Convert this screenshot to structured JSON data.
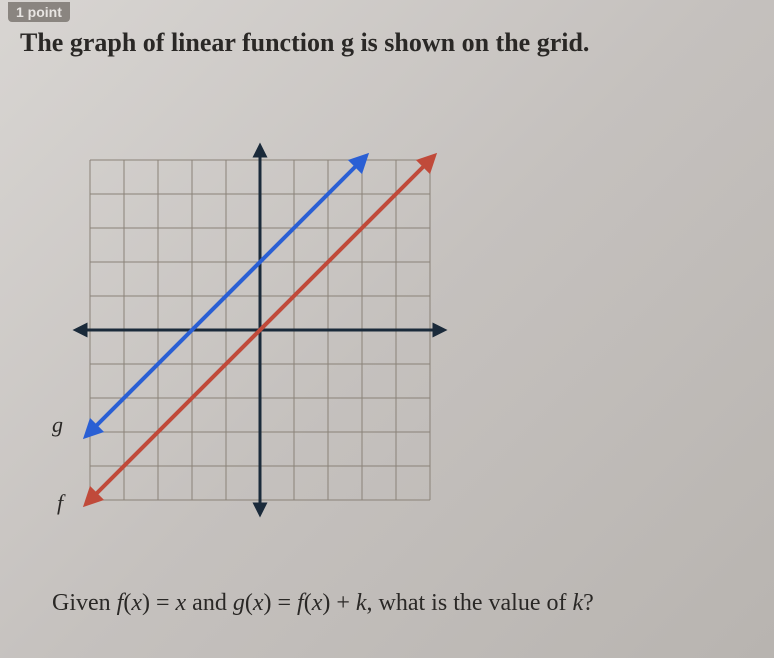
{
  "points_label": "1 point",
  "question": "The graph of linear function g is shown on the grid.",
  "graph": {
    "type": "line",
    "grid": {
      "xmin": -5,
      "xmax": 5,
      "ymin": -5,
      "ymax": 5,
      "step": 1,
      "grid_color": "#8a8278",
      "grid_width": 1,
      "axis_color": "#1a2a3a",
      "axis_width": 3,
      "background": "transparent"
    },
    "lines": [
      {
        "name": "g",
        "color": "#2a5fd4",
        "width": 4,
        "points": [
          [
            -5,
            -3
          ],
          [
            3,
            5
          ]
        ],
        "arrow_start": true,
        "arrow_end": true
      },
      {
        "name": "f",
        "color": "#c04a3a",
        "width": 4,
        "points": [
          [
            -5,
            -5
          ],
          [
            5,
            5
          ]
        ],
        "arrow_start": true,
        "arrow_end": true
      }
    ]
  },
  "labels": {
    "g": "g",
    "f": "f"
  },
  "given_prefix": "Given ",
  "f_func": "f",
  "x_var": "x",
  "eq_text1": "(",
  "eq_text2": ") = ",
  "and_text": " and ",
  "g_func": "g",
  "eq_text3": "(",
  "eq_text4": ") = ",
  "eq_text5": "(",
  "eq_text6": ") + ",
  "k_var": "k",
  "suffix": ", what is the value of ",
  "qmark": "?"
}
